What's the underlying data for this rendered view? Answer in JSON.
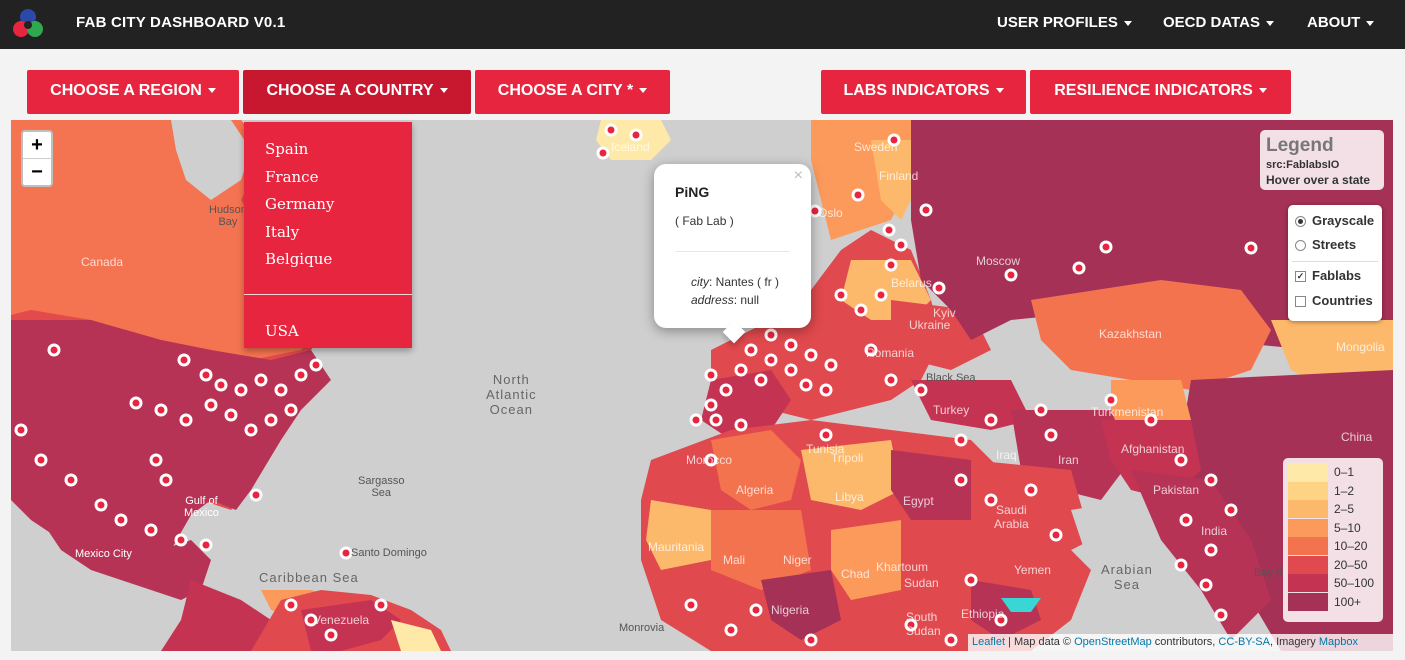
{
  "brand": {
    "title": "FAB CITY DASHBOARD V0.1"
  },
  "topnav": {
    "user_profiles": "USER PROFILES",
    "oecd_datas": "OECD DATAS",
    "about": "ABOUT"
  },
  "toolbar": {
    "region": "CHOOSE A REGION",
    "country": "CHOOSE A COUNTRY",
    "city": "CHOOSE A CITY *",
    "labs": "LABS INDICATORS",
    "resilience": "RESILIENCE INDICATORS"
  },
  "country_menu": {
    "items": [
      "Spain",
      "France",
      "Germany",
      "Italy",
      "Belgique"
    ],
    "extra": "USA"
  },
  "zoom": {
    "in": "+",
    "out": "−"
  },
  "popup": {
    "title": "PiNG",
    "type": "( Fab Lab )",
    "city_label": "city",
    "city_value": ": Nantes ( fr )",
    "address_label": "address",
    "address_value": ": null",
    "close": "×"
  },
  "legend": {
    "title": "Legend",
    "source": "src:FablabsIO",
    "hint": "Hover over a state"
  },
  "layers": {
    "base": [
      {
        "label": "Grayscale",
        "checked": true
      },
      {
        "label": "Streets",
        "checked": false
      }
    ],
    "overlays": [
      {
        "label": "Fablabs",
        "checked": true
      },
      {
        "label": "Countries",
        "checked": false
      }
    ]
  },
  "scale": {
    "labels": [
      "0–1",
      "1–2",
      "2–5",
      "5–10",
      "10–20",
      "20–50",
      "50–100",
      "100+"
    ],
    "colors": [
      "#ffe9a8",
      "#fed384",
      "#fdb96b",
      "#fc9a5c",
      "#f4734f",
      "#e0494e",
      "#c53353",
      "#a53157"
    ]
  },
  "map_labels": {
    "north_atlantic": "North\nAtlantic\nOcean",
    "sargasso": "Sargasso\nSea",
    "gulf_mexico": "Gulf of\nMexico",
    "caribbean": "Caribbean Sea",
    "black_sea": "Black Sea",
    "arabian_sea": "Arabian\nSea",
    "hudson": "Hudson\nBay",
    "canada": "Canada",
    "iceland": "Iceland",
    "sweden": "Sweden",
    "finland": "Finland",
    "moscow": "Moscow",
    "belarus": "Belarus",
    "ukraine": "Ukraine",
    "kyiv": "Kyiv",
    "kazakhstan": "Kazakhstan",
    "mongolia": "Mongolia",
    "turkey": "Turkey",
    "turkmenistan": "Turkmenistan",
    "iran": "Iran",
    "iraq": "Iraq",
    "afghanistan": "Afghanistan",
    "pakistan": "Pakistan",
    "china": "China",
    "india": "India",
    "egypt": "Egypt",
    "libya": "Libya",
    "algeria": "Algeria",
    "morocco": "Morocco",
    "tunisia": "Tunisia",
    "tripoli": "Tripoli",
    "mali": "Mali",
    "mauritania": "Mauritania",
    "niger": "Niger",
    "chad": "Chad",
    "sudan": "Sudan",
    "khartoum": "Khartoum",
    "nigeria": "Nigeria",
    "saudi": "Saudi\nArabia",
    "yemen": "Yemen",
    "ethiopia": "Ethiopia",
    "south_sudan": "South\nSudan",
    "venezuela": "Venezuela",
    "santo_domingo": "Santo Domingo",
    "mexico_city": "Mexico City",
    "monrovia": "Monrovia",
    "oslo": "Oslo",
    "romania": "Romania",
    "bay_of": "Bay of"
  },
  "attribution": {
    "leaflet": "Leaflet",
    "text1": " | Map data © ",
    "osm": "OpenStreetMap",
    "text2": " contributors, ",
    "cc": "CC-BY-SA",
    "text3": ", Imagery ",
    "mapbox": "Mapbox"
  }
}
